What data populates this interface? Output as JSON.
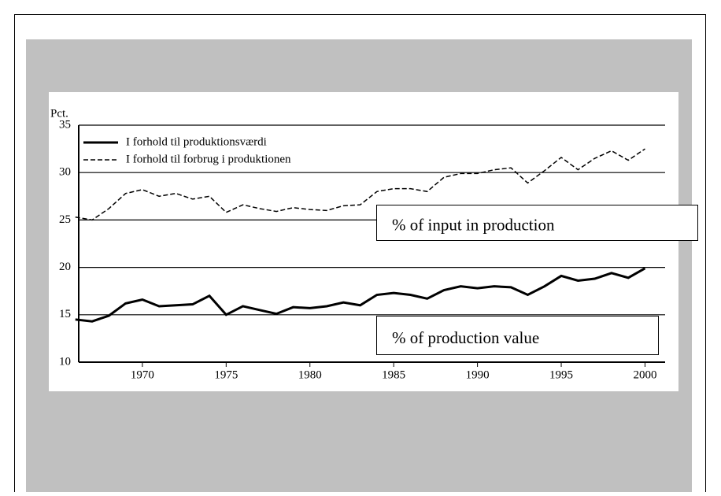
{
  "chart_data": {
    "type": "line",
    "y_label": "Pct.",
    "x": [
      1966,
      1967,
      1968,
      1969,
      1970,
      1971,
      1972,
      1973,
      1974,
      1975,
      1976,
      1977,
      1978,
      1979,
      1980,
      1981,
      1982,
      1983,
      1984,
      1985,
      1986,
      1987,
      1988,
      1989,
      1990,
      1991,
      1992,
      1993,
      1994,
      1995,
      1996,
      1997,
      1998,
      1999,
      2000
    ],
    "series": [
      {
        "name": "I forhold til produktionsværdi",
        "color": "#000000",
        "style": "solid",
        "values": [
          14.5,
          14.3,
          14.9,
          16.2,
          16.6,
          15.9,
          16.0,
          16.1,
          17.0,
          15.0,
          15.9,
          15.5,
          15.1,
          15.8,
          15.7,
          15.9,
          16.3,
          16.0,
          17.1,
          17.3,
          17.1,
          16.7,
          17.6,
          18.0,
          17.8,
          18.0,
          17.9,
          17.1,
          18.0,
          19.1,
          18.6,
          18.8,
          19.4,
          18.9,
          19.9
        ]
      },
      {
        "name": "I forhold til forbrug i produktionen",
        "color": "#000000",
        "style": "dashed",
        "values": [
          25.3,
          25.0,
          26.2,
          27.8,
          28.2,
          27.5,
          27.8,
          27.2,
          27.5,
          25.8,
          26.6,
          26.2,
          25.9,
          26.3,
          26.1,
          26.0,
          26.5,
          26.6,
          28.0,
          28.3,
          28.3,
          28.0,
          29.5,
          29.9,
          29.9,
          30.3,
          30.5,
          28.9,
          30.2,
          31.6,
          30.3,
          31.5,
          32.3,
          31.3,
          32.5
        ]
      }
    ],
    "xlim": [
      1966.2,
      2001.2
    ],
    "xticks": [
      1970,
      1975,
      1980,
      1985,
      1990,
      1995,
      2000
    ],
    "ylim": [
      10,
      35
    ],
    "yticks": [
      10,
      15,
      20,
      25,
      30,
      35
    ],
    "grid": true,
    "legend": "top-left",
    "annotations": [
      "% of input in production",
      "% of production value"
    ]
  }
}
